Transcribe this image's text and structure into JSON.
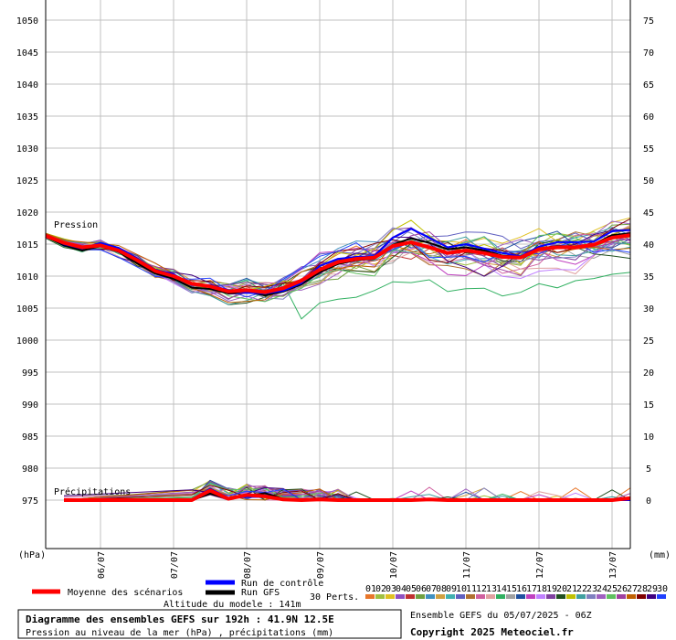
{
  "chart_data": {
    "type": "line",
    "left_axis": {
      "unit_label": "(hPa)",
      "ticks": [
        975,
        980,
        985,
        990,
        995,
        1000,
        1005,
        1010,
        1015,
        1020,
        1025,
        1030,
        1035,
        1040,
        1045,
        1050
      ],
      "range": [
        971.5,
        1050
      ]
    },
    "right_axis": {
      "unit_label": "(mm)",
      "ticks": [
        0,
        5,
        10,
        15,
        20,
        25,
        30,
        35,
        40,
        45,
        50,
        55,
        60,
        65,
        70,
        75
      ],
      "range": [
        0,
        75
      ]
    },
    "x_ticks": [
      "06/07",
      "07/07",
      "08/07",
      "09/07",
      "10/07",
      "11/07",
      "12/07",
      "13/07"
    ],
    "x_range_hours": [
      0,
      192
    ],
    "x_tick_hours": [
      18,
      42,
      66,
      90,
      114,
      138,
      162,
      186
    ],
    "pressure_label": "Pression",
    "precip_label": "Précipitations",
    "pressure_mean": {
      "name": "Moyenne des scénarios",
      "x": [
        0,
        6,
        12,
        18,
        24,
        30,
        36,
        42,
        48,
        54,
        60,
        66,
        72,
        78,
        84,
        90,
        96,
        102,
        108,
        114,
        120,
        126,
        132,
        138,
        144,
        150,
        156,
        162,
        168,
        174,
        180,
        186,
        192
      ],
      "y": [
        1016.3,
        1015.2,
        1014.5,
        1014.8,
        1014.0,
        1012.5,
        1010.8,
        1010.0,
        1008.8,
        1008.4,
        1007.6,
        1007.8,
        1007.5,
        1008.1,
        1009.3,
        1011.0,
        1012.2,
        1012.7,
        1012.9,
        1014.7,
        1015.3,
        1014.5,
        1013.6,
        1014.0,
        1013.6,
        1013.0,
        1012.9,
        1014.2,
        1014.5,
        1014.5,
        1014.9,
        1016.0,
        1016.4
      ]
    },
    "pressure_control": {
      "name": "Run de contrôle",
      "y": [
        1016.3,
        1015.0,
        1014.3,
        1015.2,
        1014.4,
        1012.8,
        1011.0,
        1010.3,
        1008.6,
        1008.6,
        1007.8,
        1007.4,
        1007.3,
        1007.7,
        1008.9,
        1011.6,
        1012.7,
        1013.0,
        1013.1,
        1016.0,
        1017.4,
        1016.0,
        1014.5,
        1015.0,
        1014.3,
        1013.6,
        1013.1,
        1014.6,
        1015.3,
        1015.3,
        1015.4,
        1017.0,
        1017.2
      ]
    },
    "pressure_gfs": {
      "name": "Run GFS",
      "y": [
        1016.2,
        1014.8,
        1014.0,
        1014.7,
        1013.8,
        1012.0,
        1010.4,
        1009.6,
        1008.2,
        1008.0,
        1007.3,
        1007.6,
        1007.0,
        1007.6,
        1008.7,
        1010.6,
        1011.9,
        1012.5,
        1012.7,
        1014.9,
        1015.9,
        1015.2,
        1014.2,
        1014.5,
        1014.0,
        1013.2,
        1013.0,
        1014.3,
        1014.7,
        1014.6,
        1015.0,
        1016.4,
        1016.7
      ]
    },
    "precip_mean": {
      "x": [
        6,
        48,
        54,
        60,
        66,
        72,
        78,
        84,
        90,
        96,
        102,
        108,
        114,
        120,
        126,
        132,
        138,
        144,
        150,
        156,
        162,
        168,
        174,
        180,
        186,
        192
      ],
      "y": [
        0,
        0,
        1.5,
        0.2,
        0.8,
        0.6,
        0.1,
        0,
        0.1,
        0,
        0,
        0,
        0,
        0,
        0.1,
        0,
        0,
        0,
        0,
        0,
        0,
        0,
        0,
        0,
        0,
        0.3
      ]
    },
    "precip_control": {
      "y": [
        0,
        0,
        1.8,
        0.3,
        0.5,
        0.5,
        0,
        0,
        0,
        0,
        0,
        0,
        0,
        0,
        0,
        0,
        0,
        0,
        0,
        0,
        0,
        0,
        0,
        0,
        0,
        0
      ]
    },
    "precip_gfs": {
      "y": [
        0,
        0,
        1.0,
        0.2,
        0.6,
        1.1,
        0.2,
        0,
        0,
        0,
        0,
        0,
        0,
        0,
        0,
        0,
        0,
        0,
        0,
        0,
        0,
        0,
        0,
        0,
        0,
        0
      ]
    },
    "perturbations": {
      "label": "30 Perts.",
      "numbers": [
        "01",
        "02",
        "03",
        "04",
        "05",
        "06",
        "07",
        "08",
        "09",
        "10",
        "11",
        "12",
        "13",
        "14",
        "15",
        "16",
        "17",
        "18",
        "19",
        "20",
        "21",
        "22",
        "23",
        "24",
        "25",
        "26",
        "27",
        "28",
        "29",
        "30"
      ],
      "colors": [
        "#e8762a",
        "#a0c040",
        "#e0c020",
        "#9050c0",
        "#c03030",
        "#70a040",
        "#4090c0",
        "#d0a040",
        "#40b0b0",
        "#6060c0",
        "#b07030",
        "#d060a0",
        "#e0a0a0",
        "#30b060",
        "#a0a0a0",
        "#2050a0",
        "#c040c0",
        "#c080ff",
        "#8040a0",
        "#205020",
        "#c0c000",
        "#40a0a0",
        "#8080c0",
        "#a060c0",
        "#60c060",
        "#a040a0",
        "#c06000",
        "#800000",
        "#400080",
        "#2040ff"
      ]
    },
    "legend": {
      "mean_label": "Moyenne des scénarios",
      "control_label": "Run de contrôle",
      "gfs_label": "Run GFS",
      "altitude": "Altitude du modele : 141m"
    },
    "colors": {
      "mean": "#ff0000",
      "control": "#0000ff",
      "gfs": "#000000",
      "grid": "#c0c0c0"
    },
    "grid": true
  },
  "footer": {
    "title": "Diagramme des ensembles GEFS sur 192h : 41.9N 12.5E",
    "subtitle": "Pression au niveau de la mer (hPa) , précipitations (mm)",
    "run_info": "Ensemble GEFS du 05/07/2025 - 06Z",
    "copyright": "Copyright 2025 Meteociel.fr"
  }
}
